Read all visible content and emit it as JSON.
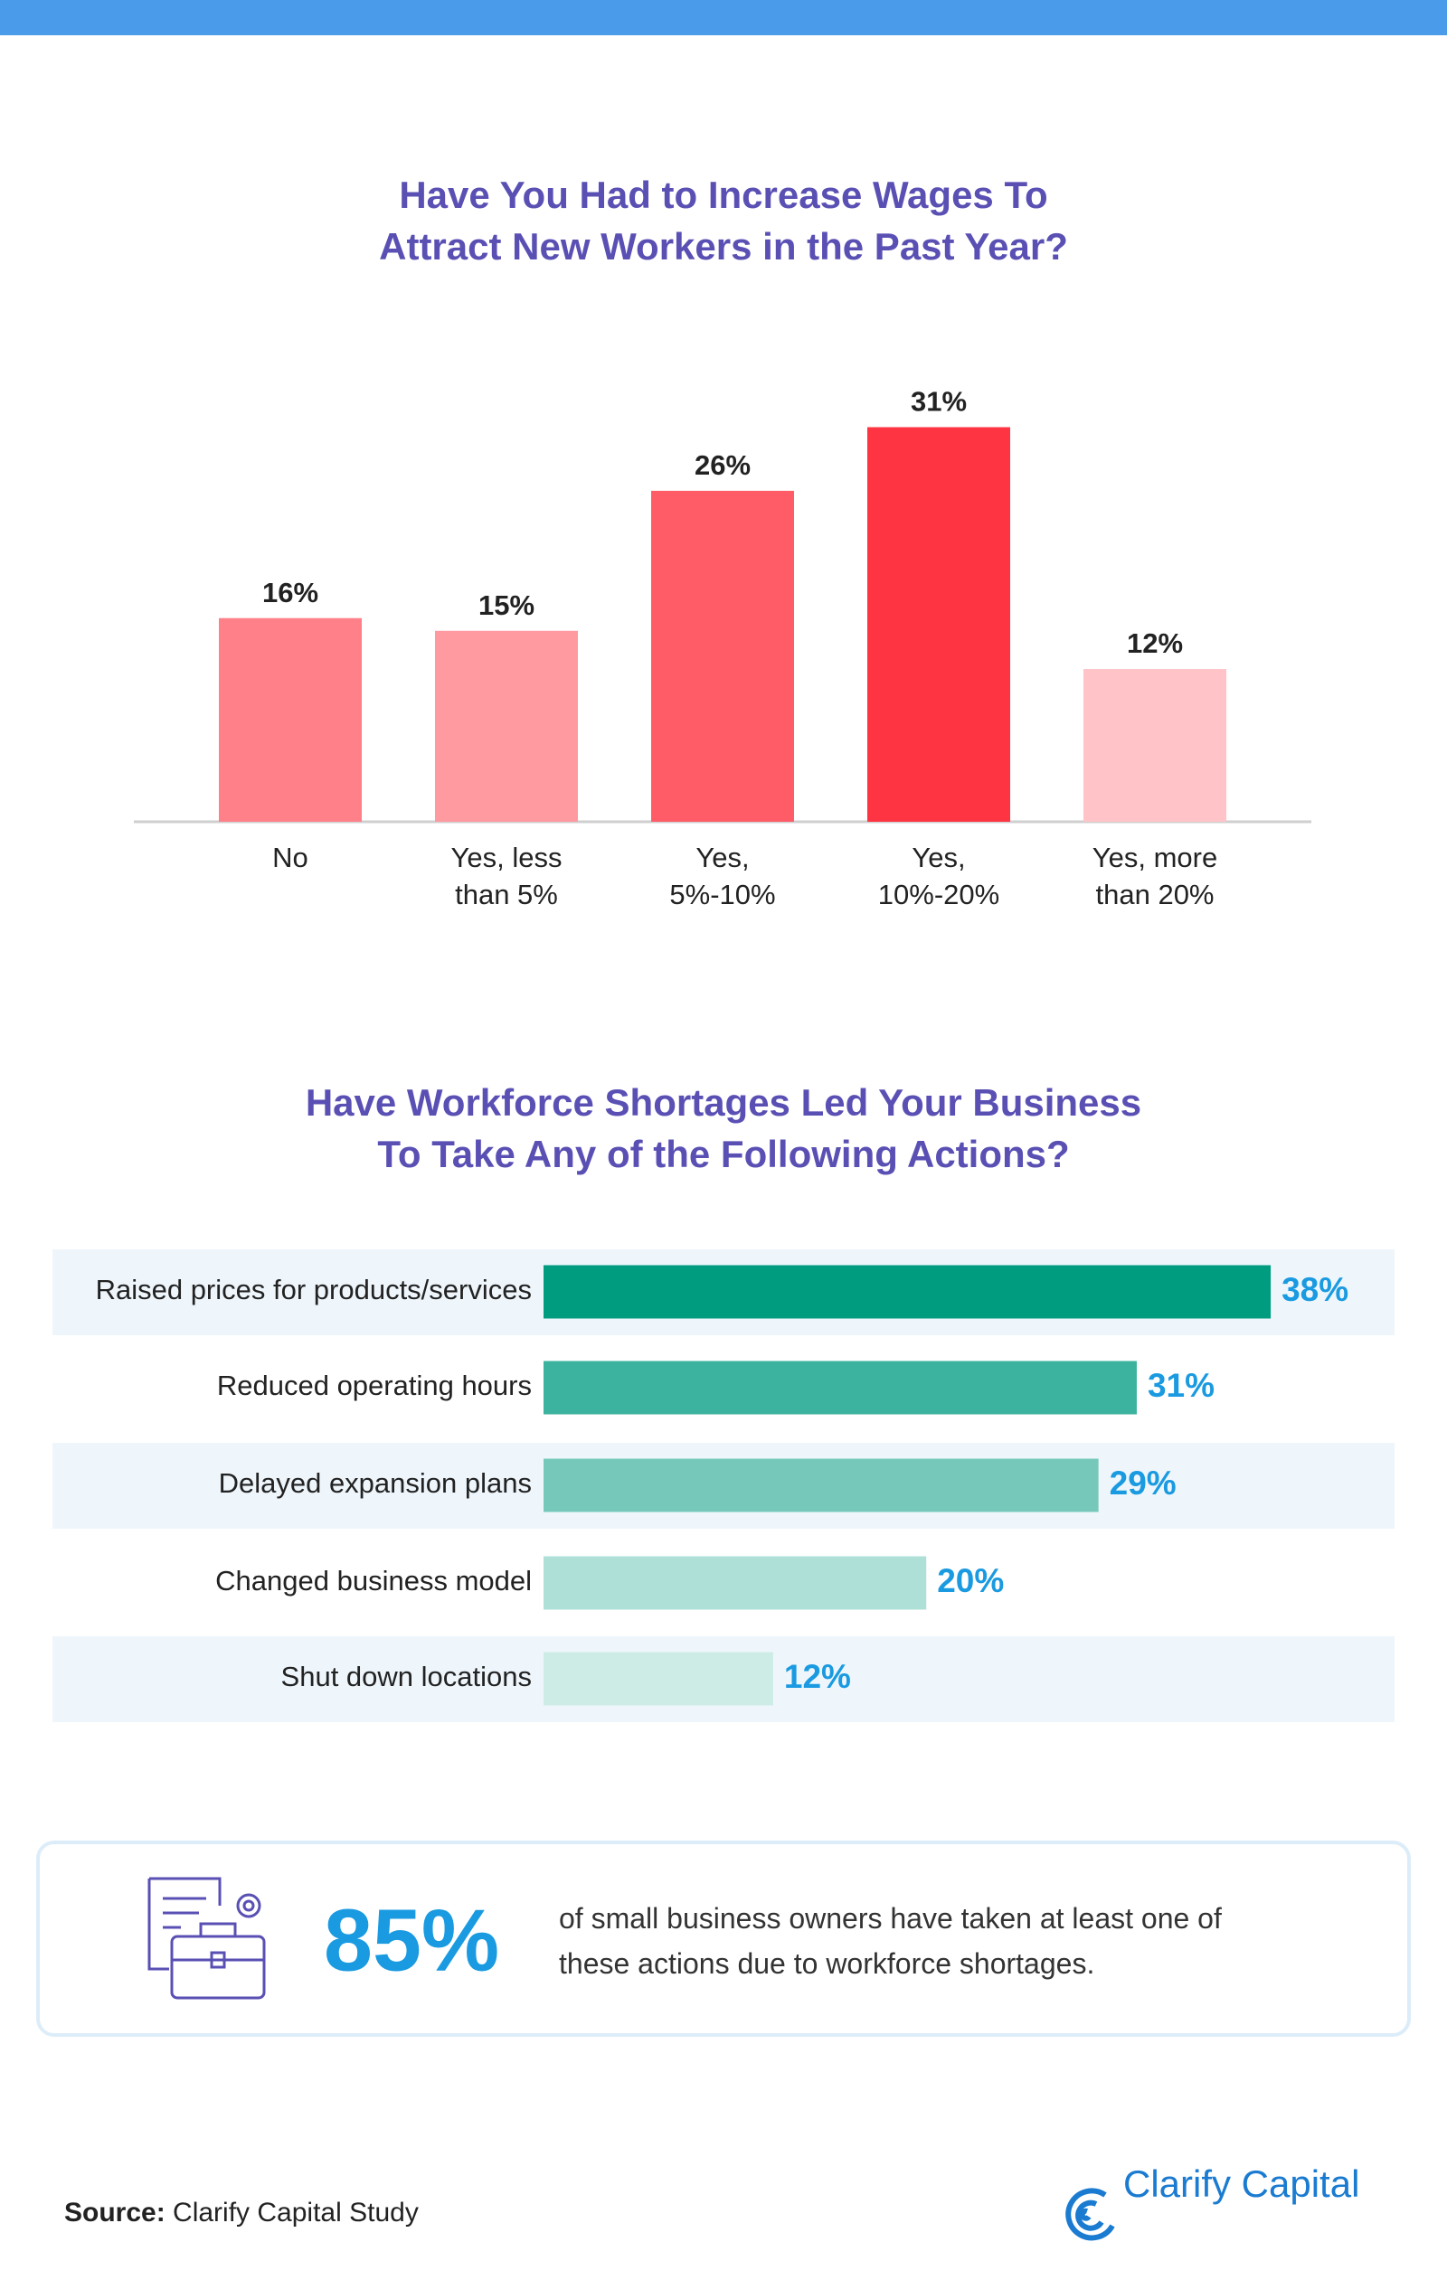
{
  "chart_data": [
    {
      "type": "bar",
      "title": "Have You Had to Increase Wages To\nAttract New Workers in the Past Year?",
      "categories": [
        "No",
        "Yes, less\nthan 5%",
        "Yes,\n5%-10%",
        "Yes,\n10%-20%",
        "Yes, more\nthan 20%"
      ],
      "values": [
        16,
        15,
        26,
        31,
        12
      ],
      "value_labels": [
        "16%",
        "15%",
        "26%",
        "31%",
        "12%"
      ],
      "colors": [
        "#ff8089",
        "#ff9aa1",
        "#ff5c67",
        "#ff3443",
        "#ffc3c8"
      ]
    },
    {
      "type": "hbar",
      "title": "Have Workforce Shortages Led Your Business\nTo Take Any of the Following Actions?",
      "categories": [
        "Raised prices for products/services",
        "Reduced operating hours",
        "Delayed expansion plans",
        "Changed business model",
        "Shut down locations"
      ],
      "values": [
        38,
        31,
        29,
        20,
        12
      ],
      "value_labels": [
        "38%",
        "31%",
        "29%",
        "20%",
        "12%"
      ],
      "colors": [
        "#009c80",
        "#3bb39e",
        "#76c9ba",
        "#aee0d8",
        "#cdece6"
      ]
    }
  ],
  "callout": {
    "stat": "85%",
    "text": "of small business owners have taken at least one of\nthese actions due to workforce shortages."
  },
  "footer": {
    "source_label": "Source:",
    "source": "Clarify Capital Study",
    "logo": "Clarify Capital"
  }
}
